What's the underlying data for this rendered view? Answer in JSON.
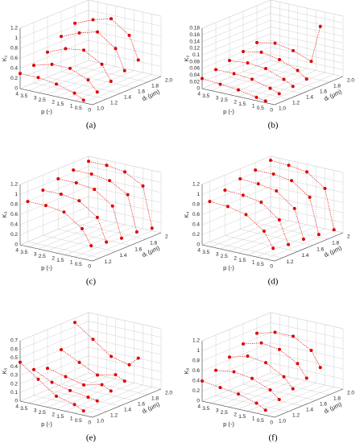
{
  "chart_data": [
    {
      "type": "scatter3d",
      "caption": "(a)",
      "xlabel": "p (-)",
      "ylabel": "dⱼ (μm)",
      "zlabel": "K₁",
      "color": "#e00000",
      "xlim": [
        0,
        4
      ],
      "xticks": [
        0,
        0.5,
        1,
        1.5,
        2,
        2.5,
        3,
        3.5,
        4
      ],
      "ylim": [
        1,
        2
      ],
      "yticks": [
        {
          "value": 1,
          "label": "1.0"
        },
        1.2,
        1.4,
        1.6,
        1.8,
        {
          "value": 2,
          "label": "2.0"
        }
      ],
      "zlim": [
        0,
        1.2
      ],
      "zticks": [
        0,
        0.2,
        0.4,
        0.6,
        0.8,
        1,
        1.2
      ],
      "x": [
        0.5,
        1,
        2,
        3,
        4
      ],
      "series": [
        {
          "d": 1.0,
          "values": [
            0.05,
            0.15,
            0.25,
            0.3,
            0.3
          ]
        },
        {
          "d": 1.2,
          "values": [
            0.1,
            0.3,
            0.45,
            0.45,
            0.35
          ]
        },
        {
          "d": 1.4,
          "values": [
            0.2,
            0.5,
            0.7,
            0.65,
            0.5
          ]
        },
        {
          "d": 1.6,
          "values": [
            0.3,
            0.7,
            0.95,
            0.85,
            0.7
          ]
        },
        {
          "d": 1.8,
          "values": [
            0.4,
            0.85,
            1.1,
            1.0,
            0.85
          ]
        }
      ]
    },
    {
      "type": "scatter3d",
      "caption": "(b)",
      "xlabel": "p (-)",
      "ylabel": "dⱼ (μm)",
      "zlabel": "K₂",
      "color": "#e00000",
      "xlim": [
        0,
        4
      ],
      "xticks": [
        0,
        0.5,
        1,
        1.5,
        2,
        2.5,
        3,
        3.5,
        4
      ],
      "ylim": [
        1,
        2
      ],
      "yticks": [
        {
          "value": 1,
          "label": "1.0"
        },
        1.2,
        1.4,
        1.6,
        1.8,
        {
          "value": 2,
          "label": "2.0"
        }
      ],
      "zlim": [
        0,
        0.18
      ],
      "zticks": [
        0,
        0.02,
        0.04,
        0.06,
        0.08,
        0.1,
        0.12,
        0.14,
        0.16,
        0.18
      ],
      "x": [
        0.5,
        1,
        2,
        3,
        4
      ],
      "series": [
        {
          "d": 1.0,
          "values": [
            0.005,
            0.01,
            0.02,
            0.025,
            0.03
          ]
        },
        {
          "d": 1.2,
          "values": [
            0.01,
            0.02,
            0.035,
            0.04,
            0.04
          ]
        },
        {
          "d": 1.4,
          "values": [
            0.015,
            0.03,
            0.05,
            0.055,
            0.05
          ]
        },
        {
          "d": 1.6,
          "values": [
            0.02,
            0.04,
            0.06,
            0.07,
            0.06
          ]
        },
        {
          "d": 1.8,
          "values": [
            0.16,
            0.05,
            0.07,
            0.08,
            0.07
          ]
        }
      ]
    },
    {
      "type": "scatter3d",
      "caption": "(c)",
      "xlabel": "p (-)",
      "ylabel": "dⱼ (μm)",
      "zlabel": "K₃",
      "color": "#e00000",
      "xlim": [
        0,
        4
      ],
      "xticks": [
        0,
        0.5,
        1,
        1.5,
        2,
        2.5,
        3,
        3.5,
        4
      ],
      "ylim": [
        1.1,
        2
      ],
      "yticks": [
        1.2,
        1.4,
        1.6,
        1.8,
        2
      ],
      "zlim": [
        0,
        1.2
      ],
      "zticks": [
        0,
        0.2,
        0.4,
        0.6,
        0.8,
        1,
        1.2
      ],
      "x": [
        0.5,
        1,
        2,
        3,
        4
      ],
      "series": [
        {
          "d": 1.2,
          "values": [
            0.2,
            0.5,
            0.75,
            0.8,
            0.8
          ]
        },
        {
          "d": 1.4,
          "values": [
            0.15,
            0.6,
            0.85,
            0.9,
            0.9
          ]
        },
        {
          "d": 1.6,
          "values": [
            0.1,
            0.7,
            0.95,
            1.0,
            1.0
          ]
        },
        {
          "d": 1.8,
          "values": [
            0.1,
            0.8,
            1.0,
            1.05,
            1.05
          ]
        },
        {
          "d": 2.0,
          "values": [
            0.05,
            0.85,
            1.05,
            1.1,
            1.1
          ]
        }
      ]
    },
    {
      "type": "scatter3d",
      "caption": "(d)",
      "xlabel": "p (-)",
      "ylabel": "dⱼ (μm)",
      "zlabel": "K₄",
      "color": "#e00000",
      "xlim": [
        0,
        4
      ],
      "xticks": [
        0,
        0.5,
        1,
        1.5,
        2,
        2.5,
        3,
        3.5,
        4
      ],
      "ylim": [
        1.1,
        2
      ],
      "yticks": [
        1.2,
        1.4,
        1.6,
        1.8,
        2
      ],
      "zlim": [
        0,
        1.2
      ],
      "zticks": [
        0,
        0.2,
        0.4,
        0.6,
        0.8,
        1,
        1.2
      ],
      "x": [
        0.5,
        1,
        2,
        3,
        4
      ],
      "series": [
        {
          "d": 1.2,
          "values": [
            0.15,
            0.45,
            0.7,
            0.78,
            0.8
          ]
        },
        {
          "d": 1.4,
          "values": [
            0.1,
            0.55,
            0.82,
            0.88,
            0.9
          ]
        },
        {
          "d": 1.6,
          "values": [
            0.08,
            0.65,
            0.92,
            0.98,
            1.0
          ]
        },
        {
          "d": 1.8,
          "values": [
            0.05,
            0.75,
            1.0,
            1.05,
            1.05
          ]
        },
        {
          "d": 2.0,
          "values": [
            0.02,
            0.8,
            1.05,
            1.1,
            1.12
          ]
        }
      ]
    },
    {
      "type": "scatter3d",
      "caption": "(e)",
      "xlabel": "p (-)",
      "ylabel": "dⱼ (μm)",
      "zlabel": "K₅",
      "color": "#e00000",
      "xlim": [
        0,
        4
      ],
      "xticks": [
        0,
        0.5,
        1,
        1.5,
        2,
        2.5,
        3,
        3.5,
        4
      ],
      "ylim": [
        1,
        2
      ],
      "yticks": [
        {
          "value": 1,
          "label": "1.0"
        },
        1.2,
        1.4,
        1.6,
        1.8,
        {
          "value": 2,
          "label": "2.0"
        }
      ],
      "zlim": [
        0,
        0.7
      ],
      "zticks": [
        0,
        0.1,
        0.2,
        0.3,
        0.4,
        0.5,
        0.6,
        0.7
      ],
      "x": [
        0.5,
        1,
        2,
        3,
        4
      ],
      "series": [
        {
          "d": 1.0,
          "values": [
            0.05,
            0.1,
            0.15,
            0.3,
            0.45
          ]
        },
        {
          "d": 1.2,
          "values": [
            0.1,
            0.12,
            0.15,
            0.2,
            0.3
          ]
        },
        {
          "d": 1.4,
          "values": [
            0.15,
            0.2,
            0.15,
            0.2,
            0.25
          ]
        },
        {
          "d": 1.6,
          "values": [
            0.2,
            0.25,
            0.2,
            0.3,
            0.4
          ]
        },
        {
          "d": 1.8,
          "values": [
            0.4,
            0.3,
            0.35,
            0.5,
            0.65
          ]
        }
      ]
    },
    {
      "type": "scatter3d",
      "caption": "(f)",
      "xlabel": "p (-)",
      "ylabel": "dⱼ (μm)",
      "zlabel": "K₆",
      "color": "#e00000",
      "xlim": [
        0,
        4
      ],
      "xticks": [
        0,
        0.5,
        1,
        1.5,
        2,
        2.5,
        3,
        3.5,
        4
      ],
      "ylim": [
        1,
        2
      ],
      "yticks": [
        {
          "value": 1,
          "label": "1.0"
        },
        1.2,
        1.4,
        1.6,
        1.8,
        {
          "value": 2,
          "label": "2.0"
        }
      ],
      "zlim": [
        0,
        1.2
      ],
      "zticks": [
        0,
        0.2,
        0.4,
        0.6,
        0.8,
        1,
        1.2
      ],
      "x": [
        0.5,
        1,
        2,
        3,
        4
      ],
      "series": [
        {
          "d": 1.0,
          "values": [
            0.1,
            0.2,
            0.3,
            0.35,
            0.4
          ]
        },
        {
          "d": 1.2,
          "values": [
            0.2,
            0.35,
            0.5,
            0.55,
            0.5
          ]
        },
        {
          "d": 1.4,
          "values": [
            0.3,
            0.5,
            0.7,
            0.75,
            0.65
          ]
        },
        {
          "d": 1.6,
          "values": [
            0.4,
            0.65,
            0.85,
            0.9,
            0.8
          ]
        },
        {
          "d": 1.8,
          "values": [
            0.5,
            0.8,
            1.0,
            1.0,
            0.9
          ]
        }
      ]
    }
  ]
}
